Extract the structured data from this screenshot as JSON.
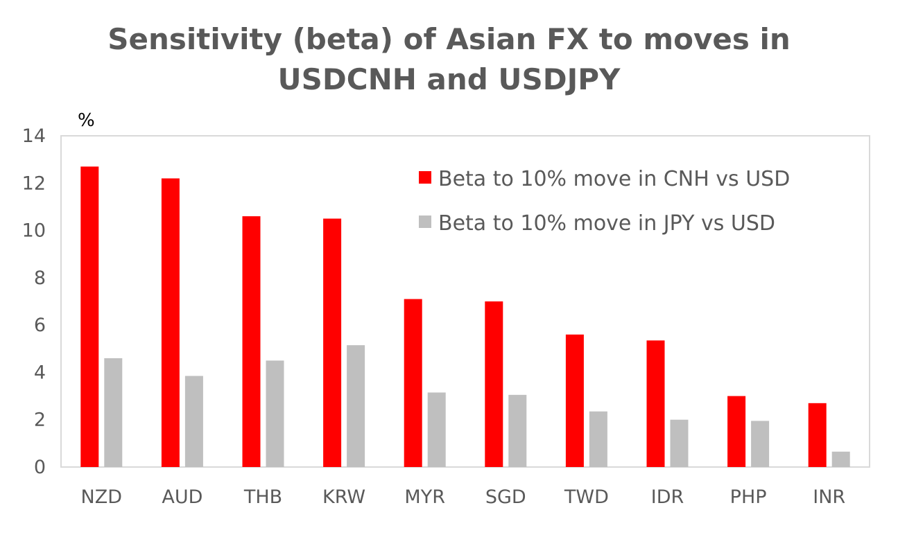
{
  "chart_data": {
    "type": "bar",
    "title": "Sensitivity (beta) of Asian FX to moves in USDCNH and USDJPY",
    "title_lines": [
      "Sensitivity (beta) of Asian FX to moves in",
      "USDCNH and USDJPY"
    ],
    "ylabel": "%",
    "xlabel": "",
    "ylim": [
      0,
      14
    ],
    "yticks": [
      0,
      2,
      4,
      6,
      8,
      10,
      12,
      14
    ],
    "grid": false,
    "legend_position": "top-right",
    "categories": [
      "NZD",
      "AUD",
      "THB",
      "KRW",
      "MYR",
      "SGD",
      "TWD",
      "IDR",
      "PHP",
      "INR"
    ],
    "series": [
      {
        "name": "Beta to 10% move in CNH vs USD",
        "color": "#ff0000",
        "values": [
          12.7,
          12.2,
          10.6,
          10.5,
          7.1,
          7.0,
          5.6,
          5.35,
          3.0,
          2.7
        ]
      },
      {
        "name": "Beta to 10% move in JPY vs USD",
        "color": "#bfbfbf",
        "values": [
          4.6,
          3.85,
          4.5,
          5.15,
          3.15,
          3.05,
          2.35,
          2.0,
          1.95,
          0.65
        ]
      }
    ]
  }
}
